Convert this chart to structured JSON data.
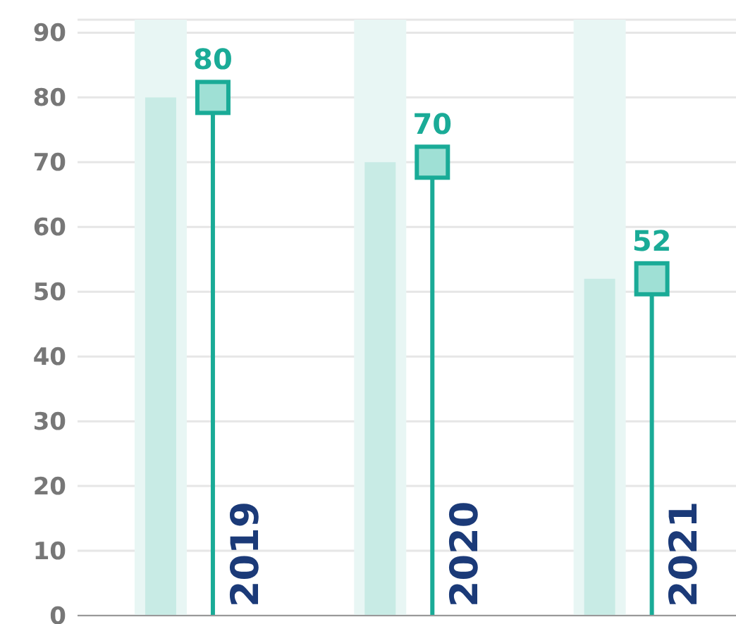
{
  "chart_data": {
    "type": "lollipop",
    "categories": [
      "2019",
      "2020",
      "2021"
    ],
    "series": [
      {
        "type": "bar",
        "color": "#c8ebe5",
        "values": [
          80,
          70,
          52
        ]
      },
      {
        "color": "#1aab97",
        "values": [
          80,
          70,
          52
        ],
        "value_labels": [
          "80",
          "70",
          "52"
        ]
      }
    ],
    "bands": [
      {
        "axis": "x",
        "from": "2019",
        "to": "2019",
        "color": "#e8f6f4"
      },
      {
        "axis": "x",
        "from": "2020",
        "to": "2020",
        "color": "#e8f6f4"
      },
      {
        "axis": "x",
        "from": "2021",
        "to": "2021",
        "color": "#e8f6f4"
      }
    ],
    "ylim": [
      0,
      92
    ],
    "yticks": [
      0,
      10,
      20,
      30,
      40,
      50,
      60,
      70,
      80,
      90
    ],
    "grid": "y",
    "marker": "square"
  }
}
